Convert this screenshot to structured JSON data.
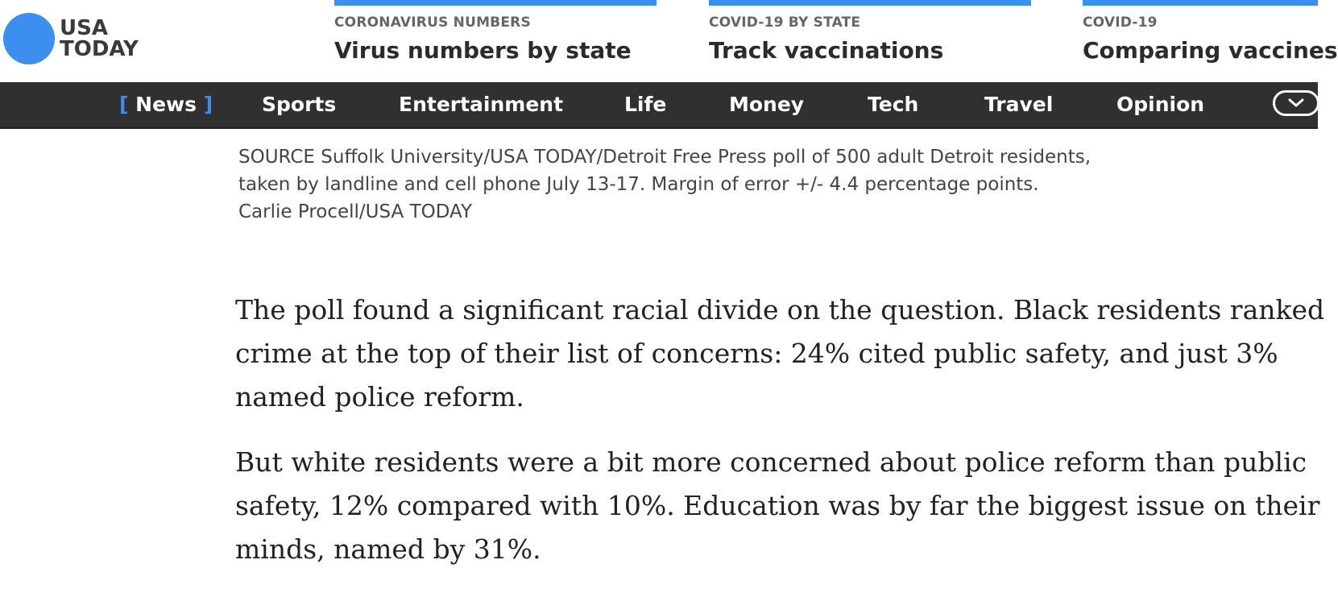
{
  "logo": {
    "line1": "USA",
    "line2": "TODAY",
    "color": "#3d8fef"
  },
  "promos": [
    {
      "kicker": "CORONAVIRUS NUMBERS",
      "headline": "Virus numbers by state"
    },
    {
      "kicker": "COVID-19 BY STATE",
      "headline": "Track vaccinations"
    },
    {
      "kicker": "COVID-19",
      "headline": "Comparing vaccines"
    }
  ],
  "nav": {
    "bracket_open": "[",
    "bracket_close": "]",
    "items": [
      "News",
      "Sports",
      "Entertainment",
      "Life",
      "Money",
      "Tech",
      "Travel",
      "Opinion"
    ],
    "more_icon": "chevron-down-icon"
  },
  "caption": {
    "line1": "SOURCE Suffolk University/USA TODAY/Detroit Free Press poll of 500 adult Detroit residents,",
    "line2": "taken by landline and cell phone July 13-17. Margin of error +/- 4.4 percentage points.",
    "credit": "Carlie Procell/USA TODAY"
  },
  "article": {
    "p1": [
      "The poll found a significant racial divide on the question. Black residents ranked",
      "crime at the top of their list of concerns: 24% cited public safety, and just 3%",
      "named police reform."
    ],
    "p2": [
      "But white residents were a bit more concerned about police reform than public",
      "safety, 12% compared with 10%. Education was by far the biggest issue on their",
      "minds, named by 31%."
    ]
  }
}
